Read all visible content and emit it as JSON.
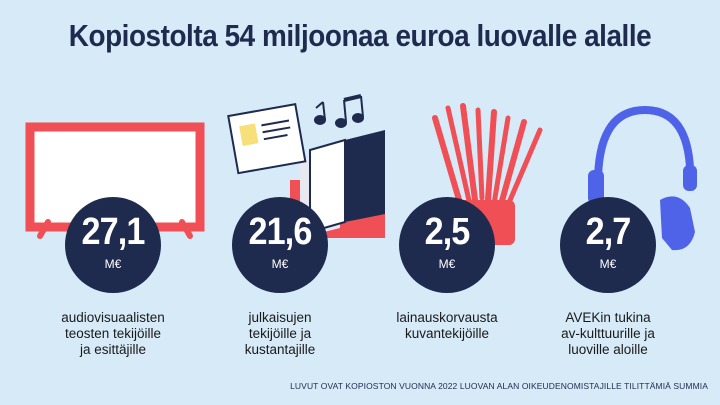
{
  "title": "Kopiostolta 54 miljoonaa euroa luovalle alalle",
  "colors": {
    "background": "#d6eaf8",
    "navy": "#1f2b4e",
    "red": "#f04f55",
    "blue": "#4f63e8",
    "yellow": "#f7e07a"
  },
  "items": [
    {
      "icon": "tv-icon",
      "value": "27,1",
      "unit": "M€",
      "description": [
        "audiovisuaalisten",
        "teosten tekijöille",
        "ja esittäjille"
      ]
    },
    {
      "icon": "book-icon",
      "value": "21,6",
      "unit": "M€",
      "description": [
        "julkaisujen",
        "tekijöille ja",
        "kustantajille"
      ]
    },
    {
      "icon": "brushes-icon",
      "value": "2,5",
      "unit": "M€",
      "description": [
        "lainauskorvausta",
        "kuvantekijöille"
      ]
    },
    {
      "icon": "headphones-icon",
      "value": "2,7",
      "unit": "M€",
      "description": [
        "AVEKin tukina",
        "av-kulttuurille ja",
        "luoville aloille"
      ]
    }
  ],
  "footnote": "LUVUT OVAT KOPIOSTON VUONNA 2022 LUOVAN ALAN OIKEUDENOMISTAJILLE TILITTÄMIÄ SUMMIA"
}
